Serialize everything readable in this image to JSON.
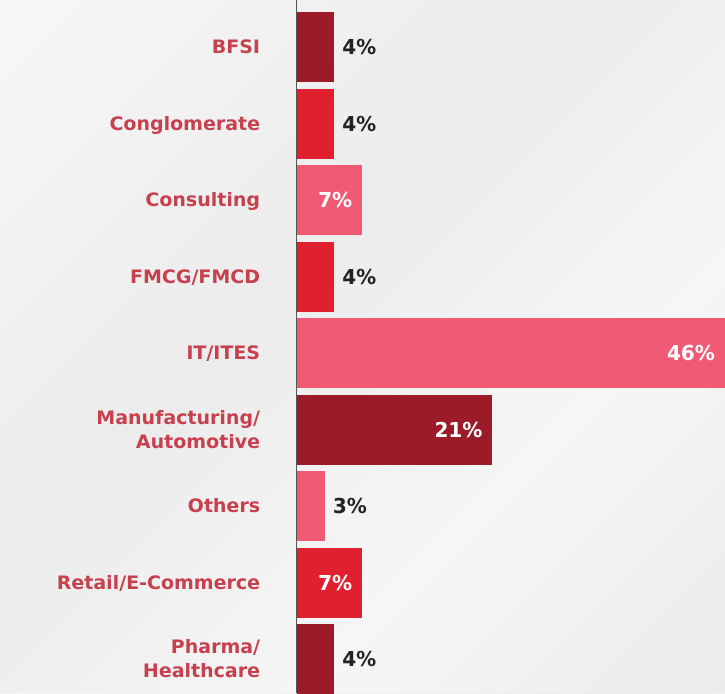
{
  "chart_data": {
    "type": "bar",
    "orientation": "horizontal",
    "categories": [
      "BFSI",
      "Conglomerate",
      "Consulting",
      "FMCG/FMCD",
      "IT/ITES",
      "Manufacturing/\nAutomotive",
      "Others",
      "Retail/E-Commerce",
      "Pharma/\nHealthcare"
    ],
    "values": [
      4,
      4,
      7,
      4,
      46,
      21,
      3,
      7,
      4
    ],
    "value_labels": [
      "4%",
      "4%",
      "7%",
      "4%",
      "46%",
      "21%",
      "3%",
      "7%",
      "4%"
    ],
    "colors": [
      "#9b1b28",
      "#e0202f",
      "#f05a74",
      "#e0202f",
      "#f05a74",
      "#9b1b28",
      "#f05a74",
      "#e0202f",
      "#9b1b28"
    ]
  }
}
